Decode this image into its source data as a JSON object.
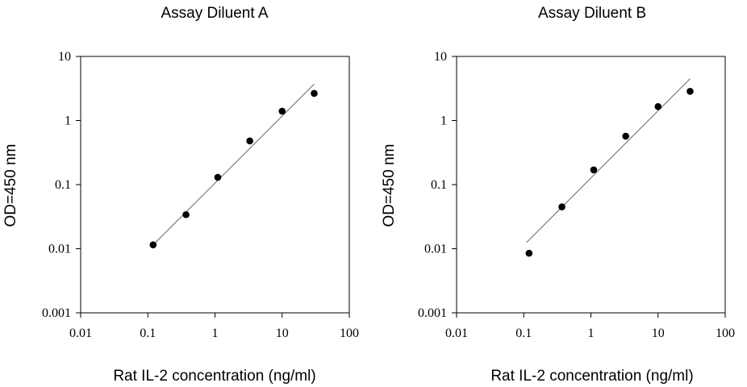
{
  "chart_data": [
    {
      "type": "scatter",
      "title": "Assay Diluent A",
      "xlabel": "Rat IL-2 concentration (ng/ml)",
      "ylabel": "OD=450 nm",
      "x_scale": "log",
      "y_scale": "log",
      "xlim": [
        0.01,
        100
      ],
      "ylim": [
        0.001,
        10
      ],
      "x_ticks": [
        "0.01",
        "0.1",
        "1",
        "10",
        "100"
      ],
      "y_ticks": [
        "0.001",
        "0.01",
        "0.1",
        "1",
        "10"
      ],
      "grid": false,
      "points": [
        {
          "x": 0.12,
          "y": 0.0115
        },
        {
          "x": 0.37,
          "y": 0.034
        },
        {
          "x": 1.1,
          "y": 0.13
        },
        {
          "x": 3.3,
          "y": 0.48
        },
        {
          "x": 10,
          "y": 1.4
        },
        {
          "x": 30,
          "y": 2.65
        }
      ],
      "fit_line": [
        {
          "x": 0.11,
          "y": 0.0105
        },
        {
          "x": 30,
          "y": 3.7
        }
      ]
    },
    {
      "type": "scatter",
      "title": "Assay Diluent B",
      "xlabel": "Rat IL-2 concentration (ng/ml)",
      "ylabel": "OD=450 nm",
      "x_scale": "log",
      "y_scale": "log",
      "xlim": [
        0.01,
        100
      ],
      "ylim": [
        0.001,
        10
      ],
      "x_ticks": [
        "0.01",
        "0.1",
        "1",
        "10",
        "100"
      ],
      "y_ticks": [
        "0.001",
        "0.01",
        "0.1",
        "1",
        "10"
      ],
      "grid": false,
      "points": [
        {
          "x": 0.12,
          "y": 0.0085
        },
        {
          "x": 0.37,
          "y": 0.045
        },
        {
          "x": 1.1,
          "y": 0.17
        },
        {
          "x": 3.3,
          "y": 0.57
        },
        {
          "x": 10,
          "y": 1.65
        },
        {
          "x": 30,
          "y": 2.85
        }
      ],
      "fit_line": [
        {
          "x": 0.11,
          "y": 0.0125
        },
        {
          "x": 30,
          "y": 4.5
        }
      ]
    }
  ]
}
